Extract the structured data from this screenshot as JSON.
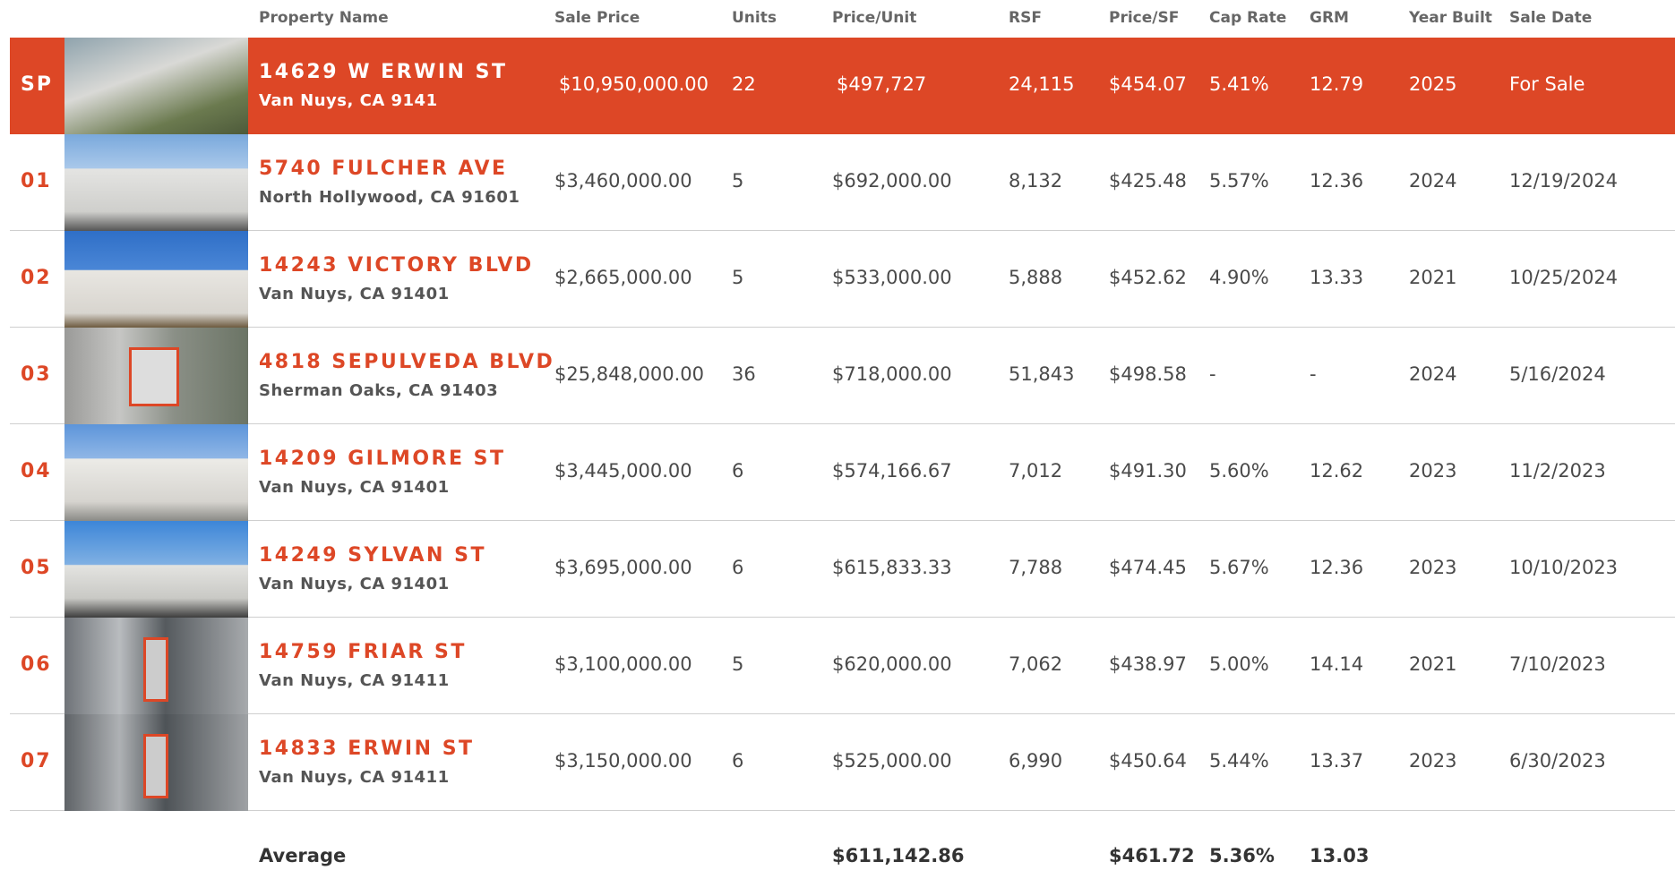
{
  "columns": [
    "Property Name",
    "Sale Price",
    "Units",
    "Price/Unit",
    "RSF",
    "Price/SF",
    "Cap Rate",
    "GRM",
    "Year Built",
    "Sale Date"
  ],
  "rows": [
    {
      "id": "SP",
      "name": "14629 W ERWIN ST",
      "address": "Van Nuys, CA 9141",
      "values": [
        "$10,950,000.00",
        "22",
        "$497,727",
        "24,115",
        "$454.07",
        "5.41%",
        "12.79",
        "2025",
        "For Sale"
      ]
    },
    {
      "id": "01",
      "name": "5740 FULCHER AVE",
      "address": "North Hollywood, CA 91601",
      "values": [
        "$3,460,000.00",
        "5",
        "$692,000.00",
        "8,132",
        "$425.48",
        "5.57%",
        "12.36",
        "2024",
        "12/19/2024"
      ]
    },
    {
      "id": "02",
      "name": "14243 VICTORY BLVD",
      "address": "Van Nuys, CA 91401",
      "values": [
        "$2,665,000.00",
        "5",
        "$533,000.00",
        "5,888",
        "$452.62",
        "4.90%",
        "13.33",
        "2021",
        "10/25/2024"
      ]
    },
    {
      "id": "03",
      "name": "4818 SEPULVEDA BLVD",
      "address": "Sherman Oaks, CA 91403",
      "values": [
        "$25,848,000.00",
        "36",
        "$718,000.00",
        "51,843",
        "$498.58",
        "-",
        "-",
        "2024",
        "5/16/2024"
      ]
    },
    {
      "id": "04",
      "name": "14209 GILMORE ST",
      "address": "Van Nuys, CA 91401",
      "values": [
        "$3,445,000.00",
        "6",
        "$574,166.67",
        "7,012",
        "$491.30",
        "5.60%",
        "12.62",
        "2023",
        "11/2/2023"
      ]
    },
    {
      "id": "05",
      "name": "14249 SYLVAN ST",
      "address": "Van Nuys, CA 91401",
      "values": [
        "$3,695,000.00",
        "6",
        "$615,833.33",
        "7,788",
        "$474.45",
        "5.67%",
        "12.36",
        "2023",
        "10/10/2023"
      ]
    },
    {
      "id": "06",
      "name": "14759 FRIAR ST",
      "address": "Van Nuys, CA 91411",
      "values": [
        "$3,100,000.00",
        "5",
        "$620,000.00",
        "7,062",
        "$438.97",
        "5.00%",
        "14.14",
        "2021",
        "7/10/2023"
      ]
    },
    {
      "id": "07",
      "name": "14833 ERWIN ST",
      "address": "Van Nuys, CA 91411",
      "values": [
        "$3,150,000.00",
        "6",
        "$525,000.00",
        "6,990",
        "$450.64",
        "5.44%",
        "13.37",
        "2023",
        "6/30/2023"
      ]
    }
  ],
  "average": {
    "label": "Average",
    "price_per_unit": "$611,142.86",
    "price_per_sf": "$461.72",
    "cap_rate": "5.36%",
    "grm": "13.03"
  }
}
